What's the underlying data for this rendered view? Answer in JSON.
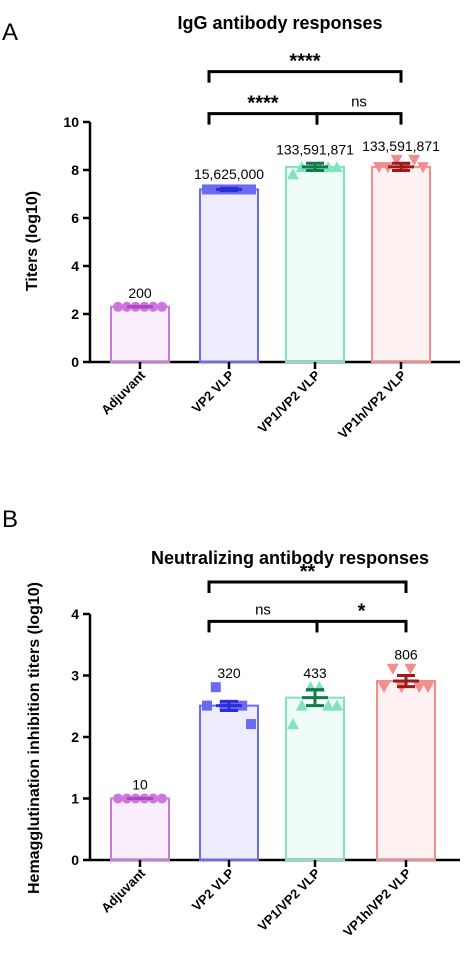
{
  "colors": {
    "adjuvant": "#cc77dd",
    "vp2": "#6a6af2",
    "vp1": "#7fe3bf",
    "vp1h": "#f28d8d",
    "err_adjuvant": "#b044c8",
    "err_vp2": "#2d2dd8",
    "err_vp1": "#157a4a",
    "err_vp1h": "#a01818"
  },
  "chart_data": [
    {
      "panel": "A",
      "type": "bar",
      "title": "IgG antibody responses",
      "ylabel": "Titers (log10)",
      "ylim": [
        0,
        10
      ],
      "yticks": [
        0,
        2,
        4,
        6,
        8,
        10
      ],
      "categories": [
        "Adjuvant",
        "VP2 VLP",
        "VP1/VP2 VLP",
        "VP1h/VP2 VLP"
      ],
      "values": [
        2.3,
        7.19,
        8.13,
        8.13
      ],
      "error": [
        [
          2.3,
          2.3
        ],
        [
          7.14,
          7.24
        ],
        [
          7.98,
          8.28
        ],
        [
          7.98,
          8.28
        ]
      ],
      "points": [
        [
          2.3,
          2.3,
          2.3,
          2.3,
          2.3,
          2.3
        ],
        [
          7.19,
          7.19,
          7.19,
          7.19,
          7.19,
          7.19
        ],
        [
          7.82,
          8.12,
          8.12,
          8.12,
          8.12,
          8.12
        ],
        [
          8.12,
          8.12,
          8.42,
          8.12,
          8.42,
          8.12
        ]
      ],
      "markers": [
        "circle",
        "square",
        "triangle-up",
        "triangle-down"
      ],
      "data_labels": [
        "200",
        "15,625,000",
        "133,591,871",
        "133,591,871"
      ],
      "significance": [
        {
          "from": 1,
          "to": 3,
          "label": "****",
          "y": 12.1
        },
        {
          "from": 1,
          "to": 2,
          "label": "****",
          "y": 10.35
        },
        {
          "from": 2,
          "to": 3,
          "label": "ns",
          "y": 10.35
        }
      ]
    },
    {
      "panel": "B",
      "type": "bar",
      "title": "Neutralizing antibody responses",
      "ylabel": "Hemagglutination inhibition titers (log10)",
      "ylim": [
        0,
        4
      ],
      "yticks": [
        0,
        1,
        2,
        3,
        4
      ],
      "categories": [
        "Adjuvant",
        "VP2 VLP",
        "VP1/VP2 VLP",
        "VP1h/VP2 VLP"
      ],
      "values": [
        1.0,
        2.51,
        2.64,
        2.91
      ],
      "error": [
        [
          1.0,
          1.0
        ],
        [
          2.43,
          2.58
        ],
        [
          2.51,
          2.77
        ],
        [
          2.82,
          3.0
        ]
      ],
      "points": [
        [
          1.0,
          1.0,
          1.0,
          1.0,
          1.0,
          1.0
        ],
        [
          2.51,
          2.81,
          2.51,
          2.51,
          2.51,
          2.21
        ],
        [
          2.21,
          2.51,
          2.81,
          2.81,
          2.51,
          2.51
        ],
        [
          2.81,
          3.11,
          2.81,
          3.11,
          2.81,
          2.81
        ]
      ],
      "markers": [
        "circle",
        "square",
        "triangle-up",
        "triangle-down"
      ],
      "data_labels": [
        "10",
        "320",
        "433",
        "806"
      ],
      "significance": [
        {
          "from": 1,
          "to": 3,
          "label": "**",
          "y": 4.52
        },
        {
          "from": 1,
          "to": 2,
          "label": "ns",
          "y": 3.88
        },
        {
          "from": 2,
          "to": 3,
          "label": "*",
          "y": 3.88
        }
      ]
    }
  ]
}
